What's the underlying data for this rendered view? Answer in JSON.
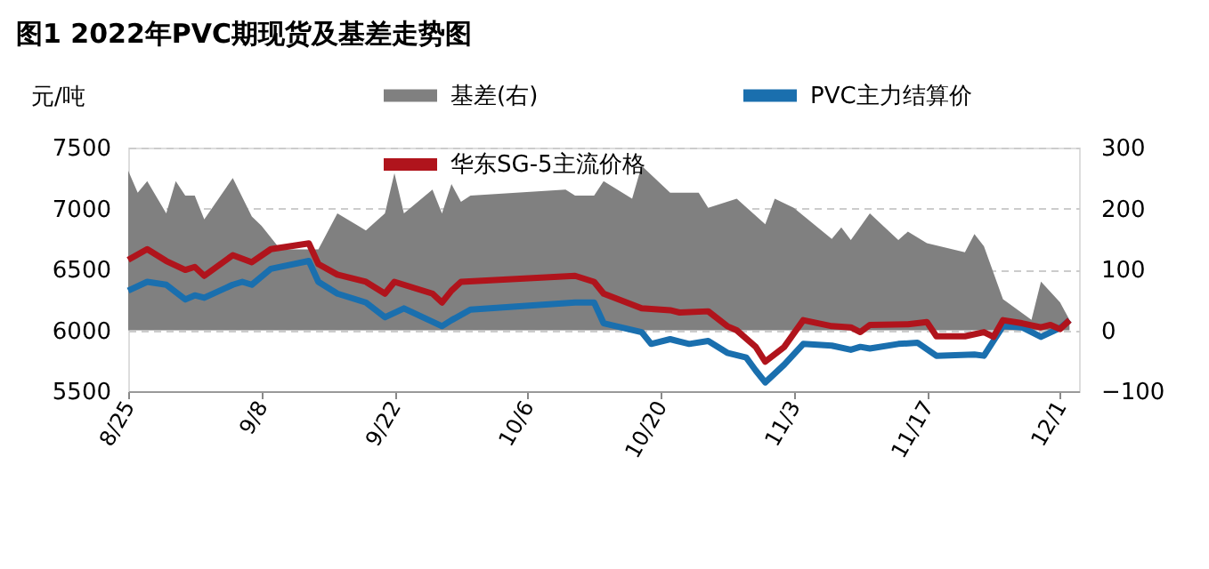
{
  "chart_data": {
    "type": "line",
    "title": "图1 2022年PVC期现货及基差走势图",
    "ylabel": "元/吨",
    "xlim": [
      "--08-25",
      "--12-03"
    ],
    "xticks": [
      {
        "value": "--08-25",
        "label": "8/25"
      },
      {
        "value": "--09-08",
        "label": "9/8"
      },
      {
        "value": "--09-22",
        "label": "9/22"
      },
      {
        "value": "--10-06",
        "label": "10/6"
      },
      {
        "value": "--10-20",
        "label": "10/20"
      },
      {
        "value": "--11-03",
        "label": "11/3"
      },
      {
        "value": "--11-17",
        "label": "11/17"
      },
      {
        "value": "--12-01",
        "label": "12/1"
      }
    ],
    "ylim": [
      5500,
      7500
    ],
    "yticks": [
      5500,
      6000,
      6500,
      7000,
      7500
    ],
    "y2lim": [
      -100,
      300
    ],
    "y2ticks": [
      -100,
      0,
      100,
      200,
      300
    ],
    "grid": "y",
    "legend": "top",
    "line_style": "solid",
    "marker": "none",
    "series": [
      {
        "name": "基差(右)",
        "type": "area",
        "axis": "y2",
        "color": "#808080",
        "x": [
          "--08-25",
          "--08-26",
          "--08-27",
          "--08-29",
          "--08-30",
          "--08-31",
          "--09-01",
          "--09-02",
          "--09-05",
          "--09-07",
          "--09-08",
          "--09-10",
          "--09-13",
          "--09-14",
          "--09-16",
          "--09-19",
          "--09-21",
          "--09-22",
          "--09-23",
          "--09-26",
          "--09-27",
          "--09-28",
          "--09-29",
          "--09-30",
          "--10-10",
          "--10-11",
          "--10-13",
          "--10-14",
          "--10-17",
          "--10-18",
          "--10-21",
          "--10-24",
          "--10-25",
          "--10-28",
          "--10-31",
          "--11-01",
          "--11-03",
          "--11-07",
          "--11-08",
          "--11-09",
          "--11-11",
          "--11-14",
          "--11-15",
          "--11-17",
          "--11-21",
          "--11-22",
          "--11-23",
          "--11-25",
          "--11-28",
          "--11-29",
          "--12-01",
          "--12-02"
        ],
        "values": [
          262,
          226,
          245,
          192,
          245,
          221,
          221,
          182,
          250,
          187,
          172,
          133,
          133,
          133,
          192,
          164,
          192,
          258,
          192,
          231,
          192,
          240,
          211,
          221,
          231,
          221,
          221,
          245,
          216,
          270,
          226,
          226,
          201,
          216,
          174,
          216,
          201,
          150,
          169,
          148,
          192,
          148,
          162,
          143,
          128,
          158,
          138,
          51,
          17,
          80,
          46,
          17
        ]
      },
      {
        "name": "PVC主力结算价",
        "axis": "y",
        "color": "#1a6fae",
        "x": [
          "--08-25",
          "--08-27",
          "--08-29",
          "--08-31",
          "--09-01",
          "--09-02",
          "--09-05",
          "--09-06",
          "--09-07",
          "--09-09",
          "--09-13",
          "--09-14",
          "--09-16",
          "--09-19",
          "--09-21",
          "--09-23",
          "--09-27",
          "--09-28",
          "--09-30",
          "--10-11",
          "--10-13",
          "--10-14",
          "--10-18",
          "--10-19",
          "--10-21",
          "--10-23",
          "--10-25",
          "--10-27",
          "--10-29",
          "--10-30",
          "--10-31",
          "--11-01",
          "--11-02",
          "--11-04",
          "--11-07",
          "--11-09",
          "--11-10",
          "--11-11",
          "--11-14",
          "--11-16",
          "--11-18",
          "--11-22",
          "--11-23",
          "--11-25",
          "--11-27",
          "--11-29",
          "--12-01",
          "--12-02"
        ],
        "values": [
          6326,
          6398,
          6374,
          6253,
          6287,
          6267,
          6374,
          6398,
          6374,
          6505,
          6569,
          6398,
          6301,
          6228,
          6107,
          6180,
          6034,
          6083,
          6170,
          6228,
          6228,
          6058,
          5985,
          5888,
          5927,
          5888,
          5912,
          5815,
          5776,
          5670,
          5572,
          5645,
          5718,
          5888,
          5874,
          5840,
          5864,
          5850,
          5888,
          5898,
          5791,
          5801,
          5791,
          6034,
          6024,
          5946,
          6019,
          6083
        ]
      },
      {
        "name": "华东SG-5主流价格",
        "axis": "y",
        "color": "#b0141c",
        "x": [
          "--08-25",
          "--08-27",
          "--08-29",
          "--08-31",
          "--09-01",
          "--09-02",
          "--09-05",
          "--09-07",
          "--09-09",
          "--09-13",
          "--09-14",
          "--09-16",
          "--09-19",
          "--09-21",
          "--09-22",
          "--09-26",
          "--09-27",
          "--09-28",
          "--09-29",
          "--10-11",
          "--10-13",
          "--10-14",
          "--10-18",
          "--10-21",
          "--10-22",
          "--10-25",
          "--10-27",
          "--10-28",
          "--10-30",
          "--10-31",
          "--11-02",
          "--11-04",
          "--11-07",
          "--11-09",
          "--11-10",
          "--11-11",
          "--11-15",
          "--11-17",
          "--11-18",
          "--11-21",
          "--11-23",
          "--11-24",
          "--11-25",
          "--11-27",
          "--11-29",
          "--11-30",
          "--12-01",
          "--12-02"
        ],
        "values": [
          6578,
          6666,
          6569,
          6496,
          6520,
          6447,
          6617,
          6559,
          6666,
          6714,
          6544,
          6457,
          6398,
          6301,
          6398,
          6301,
          6228,
          6326,
          6398,
          6447,
          6398,
          6301,
          6180,
          6165,
          6146,
          6156,
          6034,
          6000,
          5864,
          5742,
          5864,
          6083,
          6034,
          6024,
          5985,
          6044,
          6049,
          6068,
          5951,
          5951,
          5985,
          5946,
          6083,
          6058,
          6024,
          6044,
          6010,
          6083
        ]
      }
    ]
  }
}
